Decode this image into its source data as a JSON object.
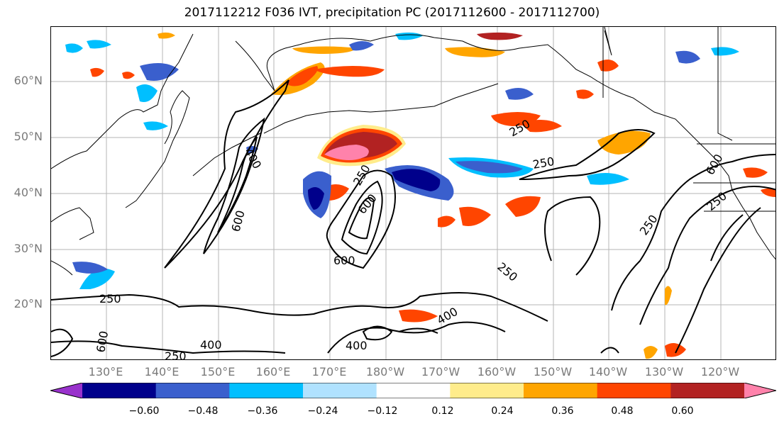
{
  "title": "2017112212 F036 IVT, precipitation PC (2017112600 - 2017112700)",
  "lat_labels": [
    "60°N",
    "50°N",
    "40°N",
    "30°N",
    "20°N"
  ],
  "lon_labels": [
    "130°E",
    "140°E",
    "150°E",
    "160°E",
    "170°E",
    "180°W",
    "170°W",
    "160°W",
    "150°W",
    "140°W",
    "130°W",
    "120°W"
  ],
  "colorbar": {
    "ticks": [
      "−0.60",
      "−0.48",
      "−0.36",
      "−0.24",
      "−0.12",
      "0.12",
      "0.24",
      "0.36",
      "0.48",
      "0.60"
    ],
    "colors": [
      "#9932cc",
      "#00008b",
      "#3a5fcd",
      "#00bfff",
      "#b0e2ff",
      "#ffffff",
      "#ffec8b",
      "#ffa500",
      "#ff4500",
      "#b22222",
      "#ff82ab"
    ]
  },
  "contour_labels": [
    "250",
    "400",
    "600",
    "250",
    "400",
    "600",
    "250",
    "400",
    "250",
    "600",
    "250",
    "250",
    "600",
    "250",
    "250",
    "600",
    "400"
  ]
}
